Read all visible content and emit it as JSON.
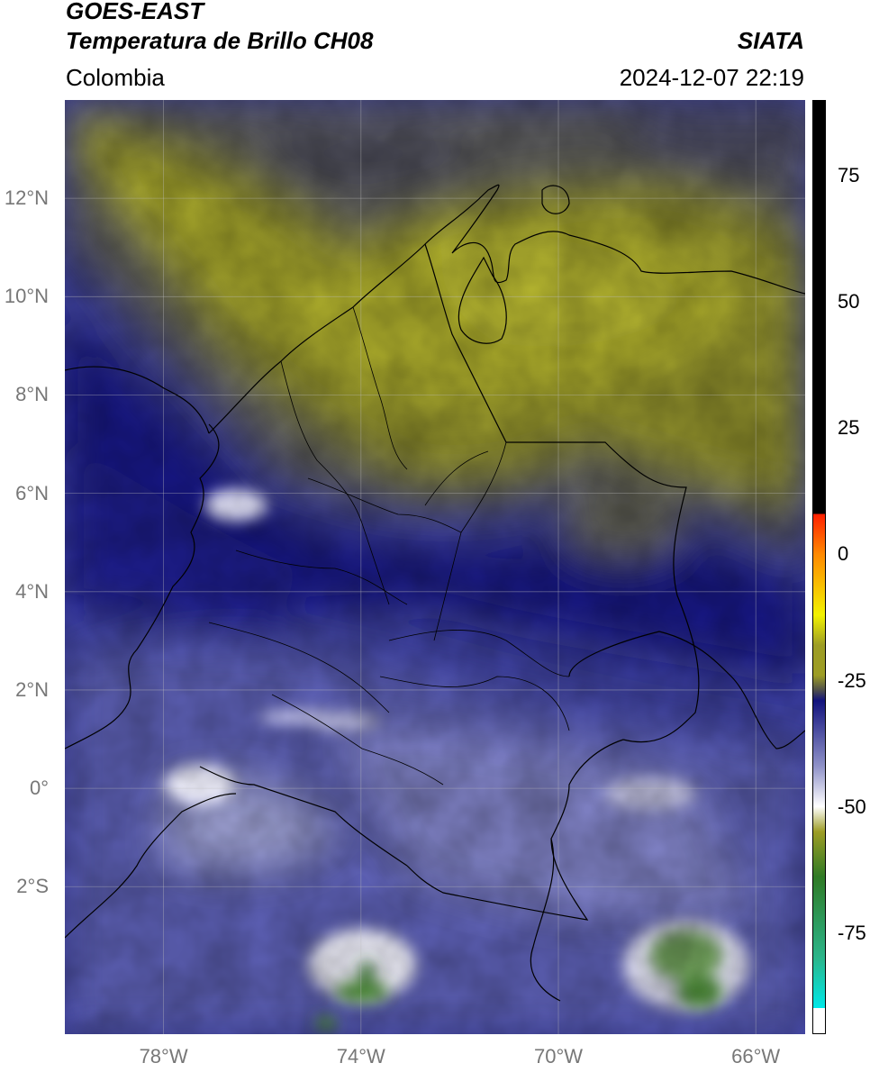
{
  "header": {
    "satellite": "GOES-EAST",
    "product": "Temperatura de Brillo CH08",
    "region": "Colombia",
    "agency": "SIATA",
    "datetime": "2024-12-07 22:19"
  },
  "map": {
    "lon_range": [
      -80,
      -65
    ],
    "lat_range": [
      -5,
      14
    ],
    "lat_ticks": [
      "12°N",
      "10°N",
      "8°N",
      "6°N",
      "4°N",
      "2°N",
      "0°",
      "2°S"
    ],
    "lat_values": [
      12,
      10,
      8,
      6,
      4,
      2,
      0,
      -2
    ],
    "lon_ticks": [
      "78°W",
      "74°W",
      "70°W",
      "66°W"
    ],
    "lon_values": [
      -78,
      -74,
      -70,
      -66
    ],
    "grid": true
  },
  "colorbar": {
    "ticks": [
      "75",
      "50",
      "25",
      "0",
      "-25",
      "-50",
      "-75"
    ],
    "tick_values": [
      75,
      50,
      25,
      0,
      -25,
      -50,
      -75
    ],
    "range": [
      -95,
      90
    ],
    "colors": {
      "warm_black": "#000000",
      "red": "#ff2000",
      "orange": "#ff8a00",
      "yellow": "#f2f200",
      "olive": "#9d9d25",
      "gray": "#4d4d4d",
      "navy": "#12137d",
      "periwinkle": "#8f92c8",
      "white": "#ffffff",
      "green": "#2f7a25",
      "teal": "#2bb58a",
      "cyan": "#00e8e8"
    }
  }
}
